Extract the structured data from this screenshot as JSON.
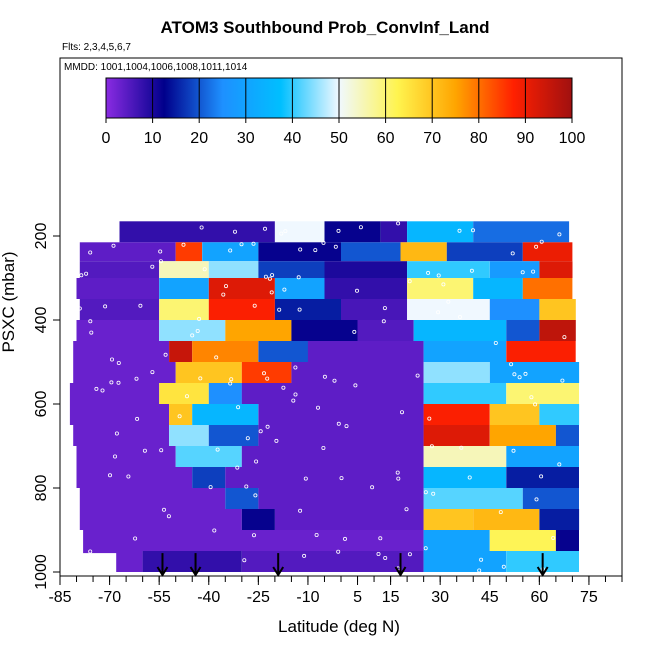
{
  "chart_data": {
    "type": "heatmap",
    "title": "ATOM3 Southbound Prob_ConvInf_Land",
    "annotations": [
      "Flts: 2,3,4,5,6,7",
      "MMDD: 1001,1004,1006,1008,1011,1014"
    ],
    "xlabel": "Latitude (deg N)",
    "ylabel": "PSXC (mbar)",
    "x_ticks": [
      "-85",
      "-70",
      "-55",
      "-40",
      "-25",
      "-10",
      "5",
      "15",
      "30",
      "45",
      "60",
      "75"
    ],
    "x_tick_values": [
      -85,
      -70,
      -55,
      -40,
      -25,
      -10,
      5,
      15,
      30,
      45,
      60,
      75
    ],
    "y_ticks": [
      "200",
      "400",
      "600",
      "800",
      "1000"
    ],
    "y_tick_values": [
      200,
      400,
      600,
      800,
      1000
    ],
    "xlim": [
      -85,
      85
    ],
    "ylim": [
      1000,
      0
    ],
    "colorbar": {
      "ticks": [
        "0",
        "10",
        "20",
        "30",
        "40",
        "50",
        "60",
        "70",
        "80",
        "90",
        "100"
      ],
      "range": [
        0,
        100
      ],
      "colors": [
        "#8a2be2",
        "#00008b",
        "#1e90ff",
        "#00bfff",
        "#f0f8ff",
        "#fff44f",
        "#ffa500",
        "#ff2000",
        "#a01010"
      ]
    },
    "arrow_latitudes": [
      -54,
      -44,
      -19,
      18,
      61
    ],
    "layers": [
      {
        "p_top": 165,
        "p_bot": 215,
        "x0": -67,
        "x1": 69,
        "segments": [
          [
            -67,
            -20,
            8
          ],
          [
            -20,
            -5,
            50
          ],
          [
            -5,
            12,
            12
          ],
          [
            12,
            20,
            8
          ],
          [
            20,
            40,
            35
          ],
          [
            40,
            69,
            22
          ]
        ]
      },
      {
        "p_top": 215,
        "p_bot": 260,
        "x0": -79,
        "x1": 70,
        "segments": [
          [
            -79,
            -50,
            4
          ],
          [
            -50,
            -42,
            85
          ],
          [
            -42,
            -25,
            30
          ],
          [
            -25,
            0,
            12
          ],
          [
            0,
            18,
            20
          ],
          [
            18,
            32,
            72
          ],
          [
            32,
            55,
            18
          ],
          [
            55,
            70,
            90
          ]
        ]
      },
      {
        "p_top": 260,
        "p_bot": 300,
        "x0": -79,
        "x1": 70,
        "segments": [
          [
            -79,
            -55,
            5
          ],
          [
            -55,
            -40,
            55
          ],
          [
            -40,
            -25,
            45
          ],
          [
            -25,
            -5,
            18
          ],
          [
            -5,
            20,
            10
          ],
          [
            20,
            45,
            40
          ],
          [
            45,
            60,
            28
          ],
          [
            60,
            70,
            92
          ]
        ]
      },
      {
        "p_top": 300,
        "p_bot": 350,
        "x0": -80,
        "x1": 70,
        "segments": [
          [
            -80,
            -55,
            4
          ],
          [
            -55,
            -40,
            30
          ],
          [
            -40,
            -20,
            92
          ],
          [
            -20,
            -5,
            30
          ],
          [
            -5,
            20,
            8
          ],
          [
            20,
            40,
            60
          ],
          [
            40,
            55,
            35
          ],
          [
            55,
            70,
            80
          ]
        ]
      },
      {
        "p_top": 350,
        "p_bot": 400,
        "x0": -79,
        "x1": 71,
        "segments": [
          [
            -79,
            -55,
            5
          ],
          [
            -55,
            -40,
            60
          ],
          [
            -40,
            -20,
            88
          ],
          [
            -20,
            0,
            15
          ],
          [
            0,
            20,
            6
          ],
          [
            20,
            45,
            50
          ],
          [
            45,
            60,
            25
          ],
          [
            60,
            71,
            70
          ]
        ]
      },
      {
        "p_top": 400,
        "p_bot": 450,
        "x0": -80,
        "x1": 71,
        "segments": [
          [
            -80,
            -55,
            3
          ],
          [
            -55,
            -35,
            45
          ],
          [
            -35,
            -15,
            75
          ],
          [
            -15,
            5,
            12
          ],
          [
            5,
            22,
            5
          ],
          [
            22,
            50,
            35
          ],
          [
            50,
            60,
            20
          ],
          [
            60,
            71,
            96
          ]
        ]
      },
      {
        "p_top": 450,
        "p_bot": 500,
        "x0": -81,
        "x1": 71,
        "segments": [
          [
            -81,
            -52,
            3
          ],
          [
            -52,
            -45,
            95
          ],
          [
            -45,
            -25,
            78
          ],
          [
            -25,
            -10,
            20
          ],
          [
            -10,
            25,
            4
          ],
          [
            25,
            50,
            30
          ],
          [
            50,
            71,
            88
          ]
        ]
      },
      {
        "p_top": 500,
        "p_bot": 550,
        "x0": -81,
        "x1": 72,
        "segments": [
          [
            -81,
            -50,
            3
          ],
          [
            -50,
            -30,
            70
          ],
          [
            -30,
            -15,
            85
          ],
          [
            -15,
            25,
            4
          ],
          [
            25,
            45,
            45
          ],
          [
            45,
            72,
            30
          ]
        ]
      },
      {
        "p_top": 550,
        "p_bot": 600,
        "x0": -82,
        "x1": 72,
        "segments": [
          [
            -82,
            -55,
            3
          ],
          [
            -55,
            -40,
            65
          ],
          [
            -40,
            -30,
            25
          ],
          [
            -30,
            25,
            4
          ],
          [
            25,
            50,
            40
          ],
          [
            50,
            72,
            60
          ]
        ]
      },
      {
        "p_top": 600,
        "p_bot": 650,
        "x0": -82,
        "x1": 72,
        "segments": [
          [
            -82,
            -52,
            3
          ],
          [
            -52,
            -45,
            70
          ],
          [
            -45,
            -25,
            35
          ],
          [
            -25,
            25,
            4
          ],
          [
            25,
            45,
            88
          ],
          [
            45,
            60,
            70
          ],
          [
            60,
            72,
            40
          ]
        ]
      },
      {
        "p_top": 650,
        "p_bot": 700,
        "x0": -81,
        "x1": 72,
        "segments": [
          [
            -81,
            -52,
            3
          ],
          [
            -52,
            -40,
            45
          ],
          [
            -40,
            -25,
            20
          ],
          [
            -25,
            25,
            4
          ],
          [
            25,
            45,
            92
          ],
          [
            45,
            65,
            75
          ],
          [
            65,
            72,
            20
          ]
        ]
      },
      {
        "p_top": 700,
        "p_bot": 750,
        "x0": -80,
        "x1": 72,
        "segments": [
          [
            -80,
            -50,
            3
          ],
          [
            -50,
            -30,
            42
          ],
          [
            -30,
            25,
            4
          ],
          [
            25,
            50,
            55
          ],
          [
            50,
            72,
            30
          ]
        ]
      },
      {
        "p_top": 750,
        "p_bot": 800,
        "x0": -80,
        "x1": 72,
        "segments": [
          [
            -80,
            -45,
            3
          ],
          [
            -45,
            -35,
            18
          ],
          [
            -35,
            25,
            4
          ],
          [
            25,
            50,
            35
          ],
          [
            50,
            72,
            15
          ]
        ]
      },
      {
        "p_top": 800,
        "p_bot": 850,
        "x0": -79,
        "x1": 72,
        "segments": [
          [
            -79,
            -35,
            3
          ],
          [
            -35,
            -25,
            20
          ],
          [
            -25,
            25,
            4
          ],
          [
            25,
            55,
            42
          ],
          [
            55,
            72,
            20
          ]
        ]
      },
      {
        "p_top": 850,
        "p_bot": 900,
        "x0": -79,
        "x1": 72,
        "segments": [
          [
            -79,
            -30,
            3
          ],
          [
            -30,
            -20,
            12
          ],
          [
            -20,
            25,
            4
          ],
          [
            25,
            40,
            70
          ],
          [
            40,
            60,
            72
          ],
          [
            60,
            72,
            15
          ]
        ]
      },
      {
        "p_top": 900,
        "p_bot": 950,
        "x0": -78,
        "x1": 72,
        "segments": [
          [
            -78,
            25,
            3
          ],
          [
            25,
            45,
            30
          ],
          [
            45,
            65,
            62
          ],
          [
            65,
            72,
            12
          ]
        ]
      },
      {
        "p_top": 950,
        "p_bot": 1000,
        "x0": -78,
        "x1": 72,
        "segments": [
          [
            -78,
            -60,
            3
          ],
          [
            -60,
            -30,
            8
          ],
          [
            -30,
            25,
            5
          ],
          [
            25,
            50,
            30
          ],
          [
            50,
            72,
            40
          ]
        ]
      }
    ]
  }
}
